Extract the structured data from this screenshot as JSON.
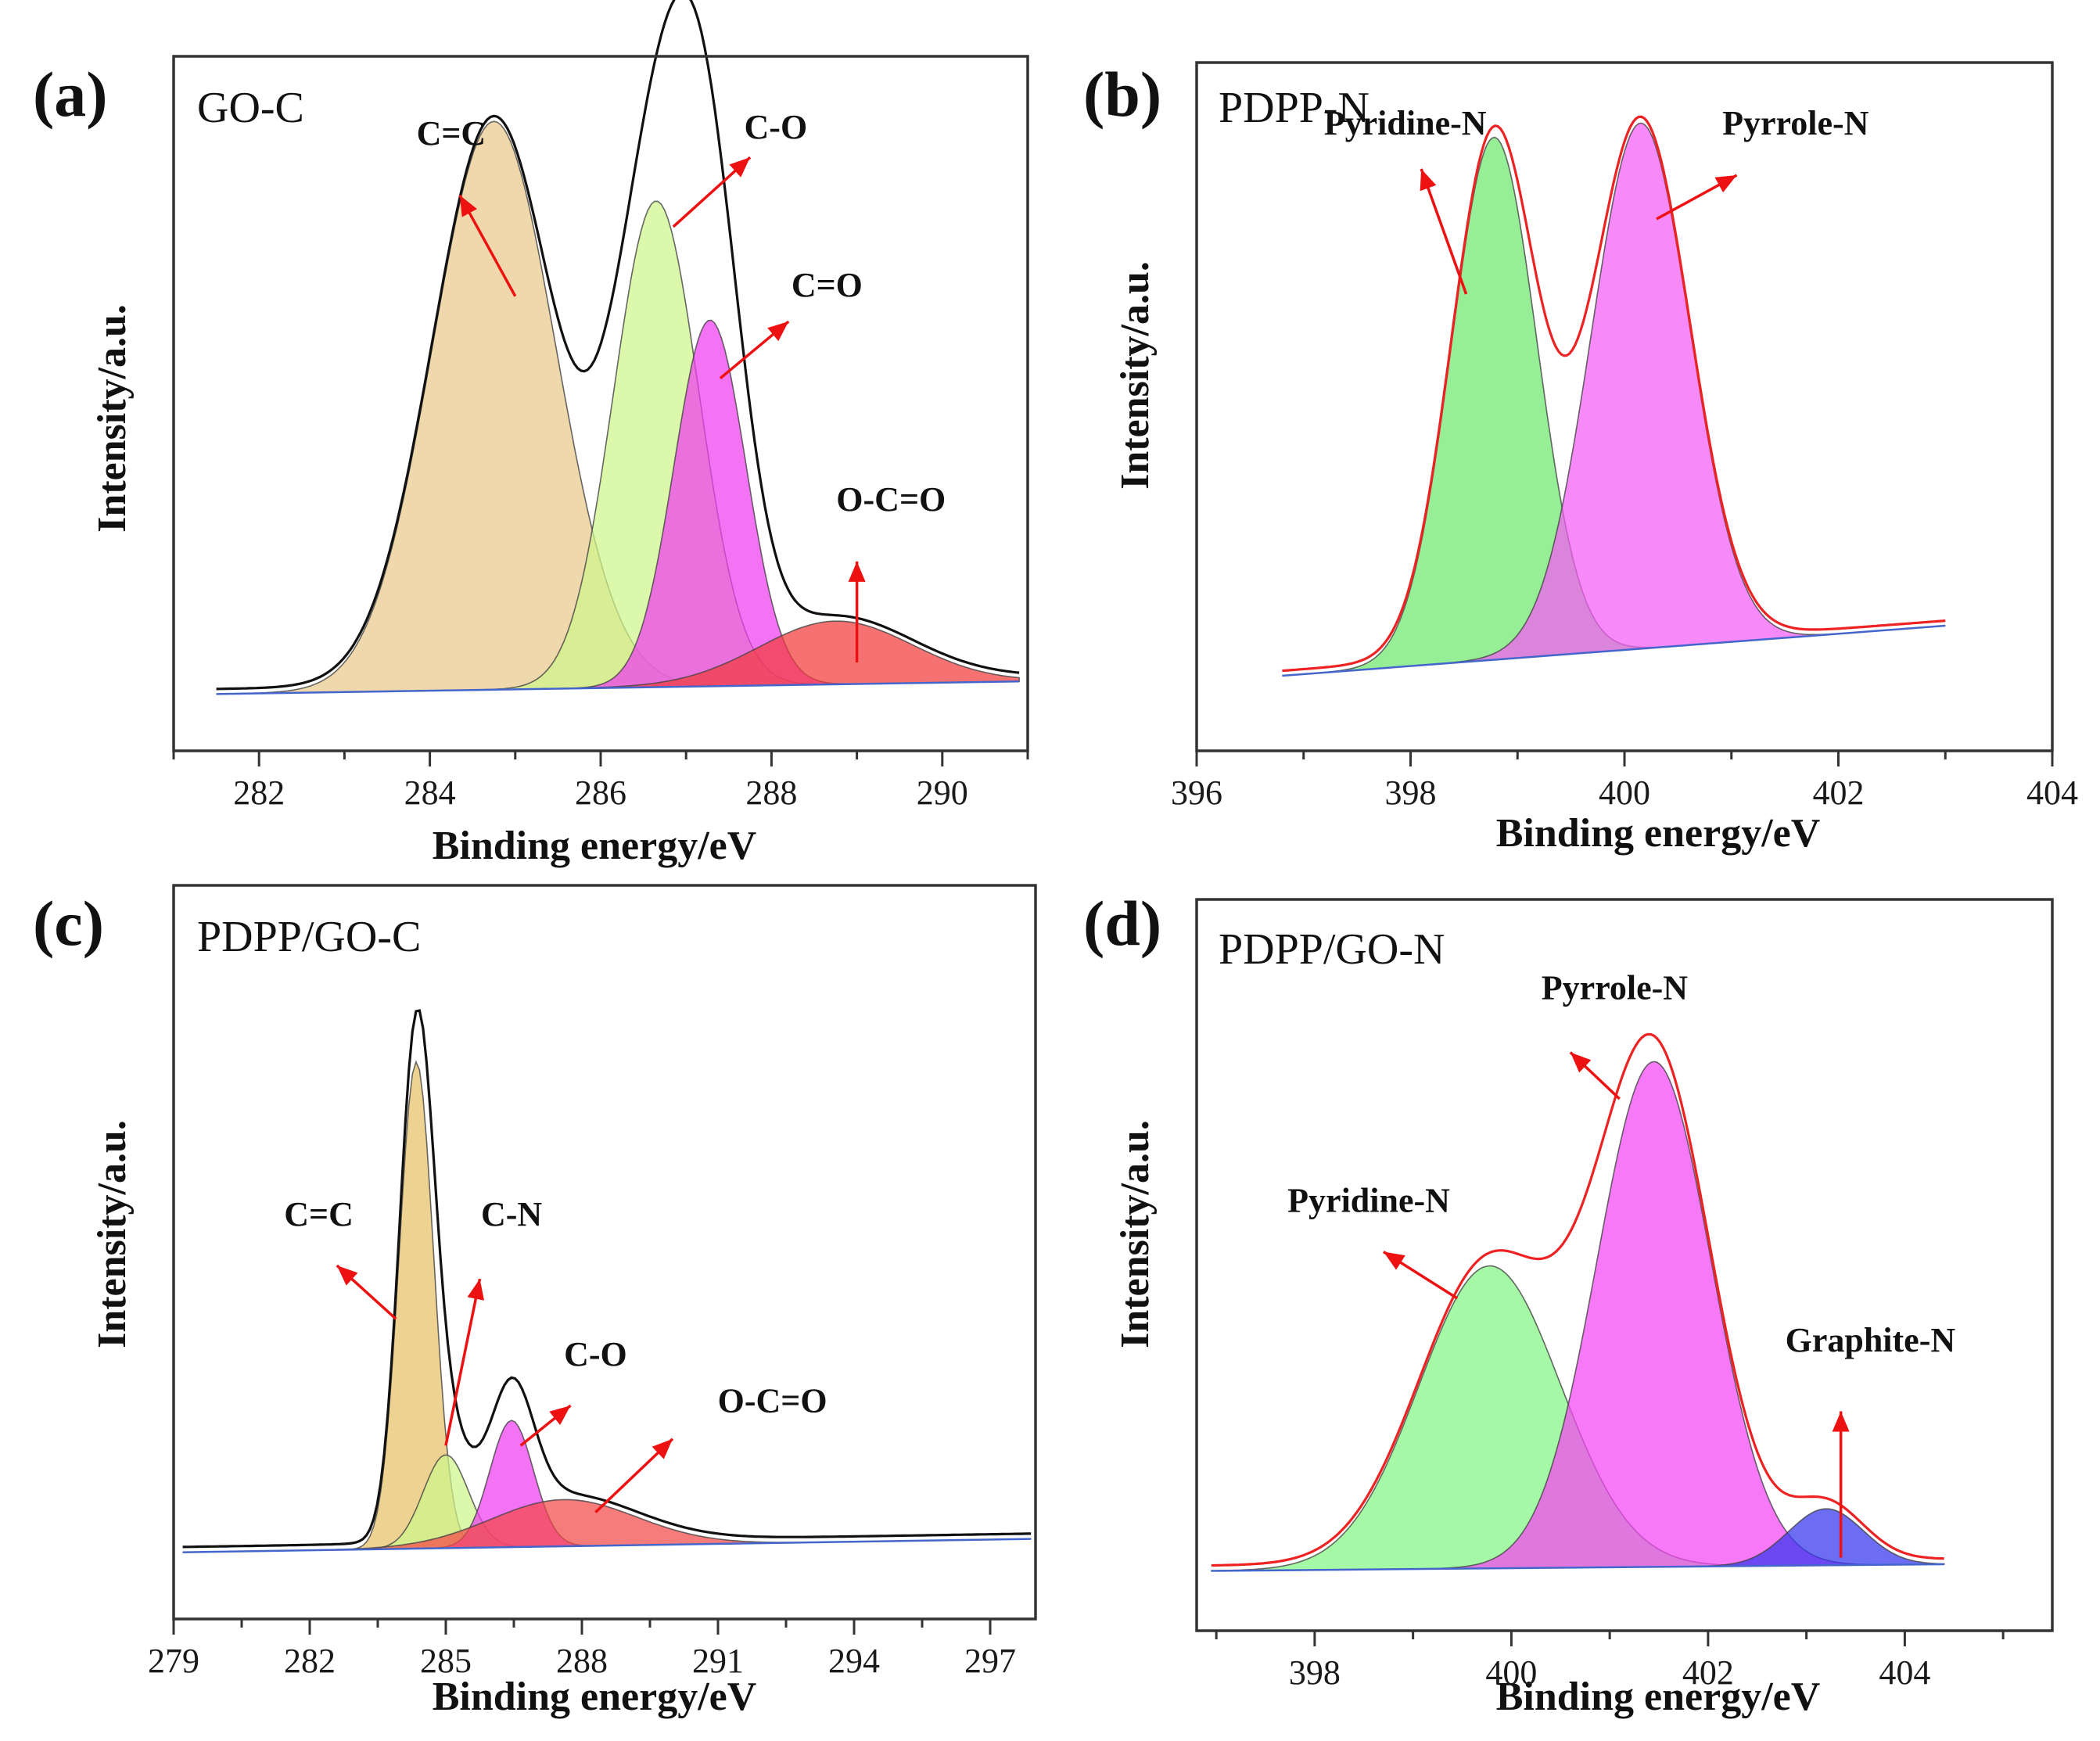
{
  "colors": {
    "frame": "#333333",
    "arrow": "#ee1111"
  },
  "chart_data": [
    {
      "type": "line",
      "panel": "(a)",
      "title": "GO-C",
      "xlabel": "Binding energy/eV",
      "ylabel": "Intensity/a.u.",
      "xlim": [
        281,
        291
      ],
      "ylim": [
        0,
        1.1
      ],
      "xticks": [
        282,
        284,
        286,
        288,
        290
      ],
      "xrange": [
        281.5,
        290.9
      ],
      "baseline": {
        "start": 0.09,
        "end": 0.11
      },
      "envelope_color": "#111111",
      "peaks": [
        {
          "name": "C=C",
          "center": 284.75,
          "height": 0.9,
          "width": 0.72,
          "color": "#e9c98a"
        },
        {
          "name": "C-O",
          "center": 286.65,
          "height": 0.77,
          "width": 0.5,
          "color": "#cff58a"
        },
        {
          "name": "C=O",
          "center": 287.28,
          "height": 0.58,
          "width": 0.42,
          "color": "#f03cf0"
        },
        {
          "name": "O-C=O",
          "center": 288.75,
          "height": 0.1,
          "width": 0.9,
          "color": "#f23c3c"
        }
      ],
      "annotations": [
        {
          "label": "C=C",
          "text_x": 284.25,
          "text_y": 0.96,
          "arrow_from": [
            285.0,
            0.72
          ],
          "arrow_to": [
            284.35,
            0.88
          ]
        },
        {
          "label": "C-O",
          "text_x": 288.05,
          "text_y": 0.97,
          "arrow_from": [
            286.85,
            0.83
          ],
          "arrow_to": [
            287.75,
            0.94
          ]
        },
        {
          "label": "C=O",
          "text_x": 288.65,
          "text_y": 0.72,
          "arrow_from": [
            287.4,
            0.59
          ],
          "arrow_to": [
            288.2,
            0.68
          ]
        },
        {
          "label": "O-C=O",
          "text_x": 289.4,
          "text_y": 0.38,
          "arrow_from": [
            289.0,
            0.14
          ],
          "arrow_to": [
            289.0,
            0.3
          ]
        }
      ]
    },
    {
      "type": "line",
      "panel": "(b)",
      "title": "PDPP-N",
      "xlabel": "Binding energy/eV",
      "ylabel": "Intensity/a.u.",
      "xlim": [
        396,
        404
      ],
      "ylim": [
        0,
        1.1
      ],
      "xticks": [
        396,
        398,
        400,
        402,
        404
      ],
      "xrange": [
        396.8,
        403.0
      ],
      "baseline": {
        "start": 0.12,
        "end": 0.2
      },
      "envelope_color": "#ee2222",
      "peaks": [
        {
          "name": "Pyridine-N",
          "center": 398.78,
          "height": 0.835,
          "width": 0.4,
          "color": "#6ee86e"
        },
        {
          "name": "Pyrrole-N",
          "center": 400.15,
          "height": 0.84,
          "width": 0.46,
          "color": "#f55cf5"
        }
      ],
      "annotations": [
        {
          "label": "Pyridine-N",
          "text_x": 397.95,
          "text_y": 0.985,
          "arrow_from": [
            398.52,
            0.73
          ],
          "arrow_to": [
            398.1,
            0.93
          ]
        },
        {
          "label": "Pyrrole-N",
          "text_x": 401.6,
          "text_y": 0.985,
          "arrow_from": [
            400.3,
            0.85
          ],
          "arrow_to": [
            401.05,
            0.92
          ]
        }
      ]
    },
    {
      "type": "line",
      "panel": "(c)",
      "title": "PDPP/GO-C",
      "xlabel": "Binding energy/eV",
      "ylabel": "Intensity/a.u.",
      "xlim": [
        279,
        298
      ],
      "ylim": [
        0,
        1.1
      ],
      "xticks": [
        279,
        282,
        285,
        288,
        291,
        294,
        297
      ],
      "xrange": [
        279.2,
        297.9
      ],
      "baseline": {
        "start": 0.1,
        "end": 0.12
      },
      "envelope_color": "#111111",
      "peaks": [
        {
          "name": "C=C",
          "center": 284.35,
          "height": 0.73,
          "width": 0.38,
          "color": "#e8c068"
        },
        {
          "name": "C-N",
          "center": 285.0,
          "height": 0.14,
          "width": 0.5,
          "color": "#cff58a"
        },
        {
          "name": "C-O",
          "center": 286.45,
          "height": 0.19,
          "width": 0.48,
          "color": "#f03cf0"
        },
        {
          "name": "O-C=O",
          "center": 287.6,
          "height": 0.07,
          "width": 1.6,
          "color": "#f24848"
        }
      ],
      "annotations": [
        {
          "label": "C=C",
          "text_x": 282.2,
          "text_y": 0.59,
          "arrow_from": [
            283.9,
            0.45
          ],
          "arrow_to": [
            282.6,
            0.53
          ]
        },
        {
          "label": "C-N",
          "text_x": 286.45,
          "text_y": 0.59,
          "arrow_from": [
            285.0,
            0.26
          ],
          "arrow_to": [
            285.75,
            0.51
          ]
        },
        {
          "label": "C-O",
          "text_x": 288.3,
          "text_y": 0.38,
          "arrow_from": [
            286.65,
            0.26
          ],
          "arrow_to": [
            287.75,
            0.32
          ]
        },
        {
          "label": "O-C=O",
          "text_x": 292.2,
          "text_y": 0.31,
          "arrow_from": [
            288.3,
            0.16
          ],
          "arrow_to": [
            290.0,
            0.27
          ]
        }
      ]
    },
    {
      "type": "line",
      "panel": "(d)",
      "title": "PDPP/GO-N",
      "xlabel": "Binding energy/eV",
      "ylabel": "Intensity/a.u.",
      "xlim": [
        396.8,
        405.5
      ],
      "ylim": [
        0,
        1.1
      ],
      "xticks": [
        398,
        400,
        402,
        404
      ],
      "xrange": [
        396.95,
        404.4
      ],
      "baseline": {
        "start": 0.09,
        "end": 0.1
      },
      "envelope_color": "#ee2222",
      "peaks": [
        {
          "name": "Pyridine-N",
          "center": 399.78,
          "height": 0.455,
          "width": 0.72,
          "color": "#82f582"
        },
        {
          "name": "Pyrrole-N",
          "center": 401.45,
          "height": 0.76,
          "width": 0.58,
          "color": "#f545f5"
        },
        {
          "name": "Graphite-N",
          "center": 403.2,
          "height": 0.085,
          "width": 0.38,
          "color": "#3535ee"
        }
      ],
      "annotations": [
        {
          "label": "Pyridine-N",
          "text_x": 398.55,
          "text_y": 0.63,
          "arrow_from": [
            399.45,
            0.5
          ],
          "arrow_to": [
            398.7,
            0.57
          ]
        },
        {
          "label": "Pyrrole-N",
          "text_x": 401.05,
          "text_y": 0.95,
          "arrow_from": [
            401.1,
            0.8
          ],
          "arrow_to": [
            400.6,
            0.87
          ]
        },
        {
          "label": "Graphite-N",
          "text_x": 403.65,
          "text_y": 0.42,
          "arrow_from": [
            403.35,
            0.11
          ],
          "arrow_to": [
            403.35,
            0.33
          ]
        }
      ]
    }
  ]
}
